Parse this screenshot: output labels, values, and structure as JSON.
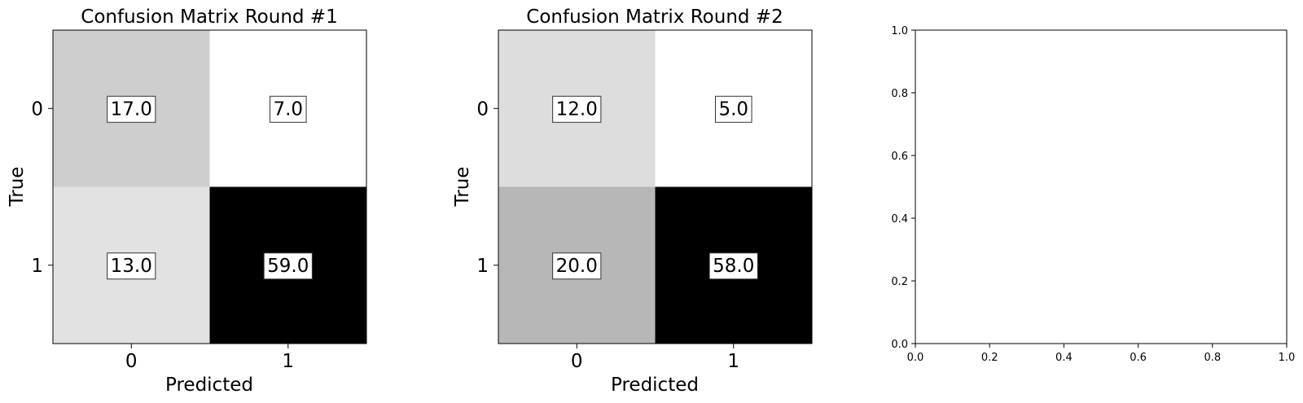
{
  "chart_data": [
    {
      "type": "heatmap",
      "title": "Confusion Matrix Round #1",
      "xlabel": "Predicted",
      "ylabel": "True",
      "x_categories": [
        "0",
        "1"
      ],
      "y_categories": [
        "0",
        "1"
      ],
      "values": [
        [
          17.0,
          7.0
        ],
        [
          13.0,
          59.0
        ]
      ],
      "value_labels": [
        [
          "17.0",
          "7.0"
        ],
        [
          "13.0",
          "59.0"
        ]
      ],
      "colormap": "grey",
      "grid": false
    },
    {
      "type": "heatmap",
      "title": "Confusion Matrix Round #2",
      "xlabel": "Predicted",
      "ylabel": "True",
      "x_categories": [
        "0",
        "1"
      ],
      "y_categories": [
        "0",
        "1"
      ],
      "values": [
        [
          12.0,
          5.0
        ],
        [
          20.0,
          58.0
        ]
      ],
      "value_labels": [
        [
          "12.0",
          "5.0"
        ],
        [
          "20.0",
          "58.0"
        ]
      ],
      "colormap": "grey",
      "grid": false
    },
    {
      "type": "line",
      "title": "",
      "xlabel": "",
      "ylabel": "",
      "series": [],
      "xlim": [
        0.0,
        1.0
      ],
      "ylim": [
        0.0,
        1.0
      ],
      "x_ticks": [
        "0.0",
        "0.2",
        "0.4",
        "0.6",
        "0.8",
        "1.0"
      ],
      "y_ticks": [
        "0.0",
        "0.2",
        "0.4",
        "0.6",
        "0.8",
        "1.0"
      ],
      "grid": false
    }
  ]
}
